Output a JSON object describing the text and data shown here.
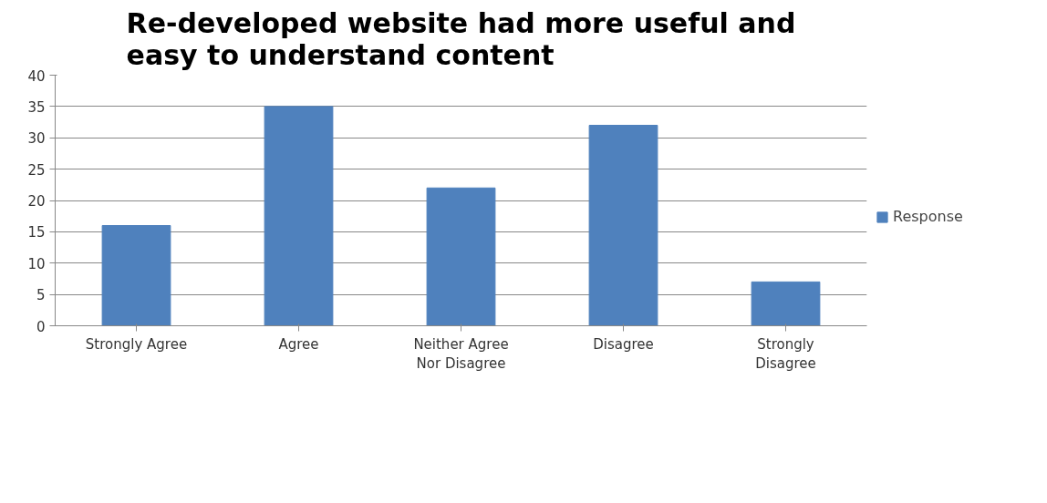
{
  "chart_data": {
    "type": "bar",
    "title": "Re-developed website had more useful and easy to understand content",
    "categories": [
      "Strongly Agree",
      "Agree",
      "Neither Agree Nor Disagree",
      "Disagree",
      "Strongly Disagree"
    ],
    "series": [
      {
        "name": "Response",
        "color": "#4f81bd",
        "values": [
          16,
          35,
          22,
          32,
          7
        ]
      }
    ],
    "ylim": [
      0,
      40
    ],
    "yticks": [
      0,
      5,
      10,
      15,
      20,
      25,
      30,
      35,
      40
    ],
    "grid": "y",
    "legend": "right"
  }
}
